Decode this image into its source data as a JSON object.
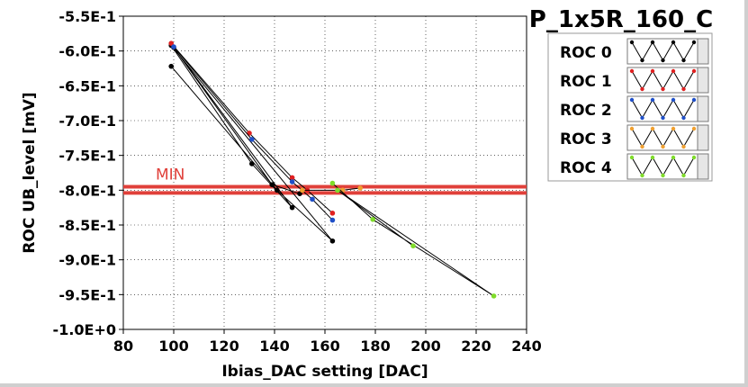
{
  "chart_data": {
    "type": "line",
    "title": "P_1x5R_160_C",
    "xlabel": "Ibias_DAC setting [DAC]",
    "ylabel": "ROC UB_level [mV]",
    "xlim": [
      80,
      240
    ],
    "ylim": [
      -1000,
      -550
    ],
    "x_ticks": [
      80,
      100,
      120,
      140,
      160,
      180,
      200,
      220,
      240
    ],
    "x_tick_labels": [
      "80",
      "100",
      "120",
      "140",
      "160",
      "180",
      "200",
      "220",
      "240"
    ],
    "y_ticks": [
      -550,
      -600,
      -650,
      -700,
      -750,
      -800,
      -850,
      -900,
      -950,
      -1000
    ],
    "y_tick_labels": [
      "-5.5E-1",
      "-6.0E-1",
      "-6.5E-1",
      "-7.0E-1",
      "-7.5E-1",
      "-8.0E-1",
      "-8.5E-1",
      "-9.0E-1",
      "-9.5E-1",
      "-1.0E+0"
    ],
    "grid": true,
    "legend_position": "top-right",
    "series": [
      {
        "name": "ROC 0",
        "color": "#000000",
        "marker": "circle",
        "points": [
          [
            99,
            -622
          ],
          [
            141,
            -800
          ],
          [
            163,
            -873
          ],
          [
            99,
            -592
          ],
          [
            131,
            -762
          ],
          [
            147,
            -825
          ],
          [
            100,
            -595
          ],
          [
            139,
            -792
          ],
          [
            150,
            -805
          ]
        ]
      },
      {
        "name": "ROC 1",
        "color": "#e02020",
        "marker": "circle",
        "points": [
          [
            99,
            -589
          ],
          [
            130,
            -718
          ],
          [
            147,
            -782
          ],
          [
            153,
            -800
          ],
          [
            163,
            -833
          ]
        ]
      },
      {
        "name": "ROC 2",
        "color": "#1f4fc8",
        "marker": "circle",
        "points": [
          [
            100,
            -594
          ],
          [
            131,
            -727
          ],
          [
            147,
            -788
          ],
          [
            155,
            -813
          ],
          [
            163,
            -843
          ]
        ]
      },
      {
        "name": "ROC 3",
        "color": "#f0a030",
        "marker": "circle",
        "points": [
          [
            151,
            -800
          ],
          [
            167,
            -800
          ],
          [
            174,
            -797
          ]
        ]
      },
      {
        "name": "ROC 4",
        "color": "#7fdc2a",
        "marker": "circle",
        "points": [
          [
            163,
            -790
          ],
          [
            179,
            -842
          ],
          [
            227,
            -952
          ],
          [
            165,
            -800
          ],
          [
            195,
            -880
          ]
        ]
      }
    ],
    "reference_lines": [
      {
        "label": "MIN",
        "y": -795,
        "color": "#e0403a"
      },
      {
        "label": "",
        "y": -804,
        "color": "#e0403a"
      }
    ]
  }
}
